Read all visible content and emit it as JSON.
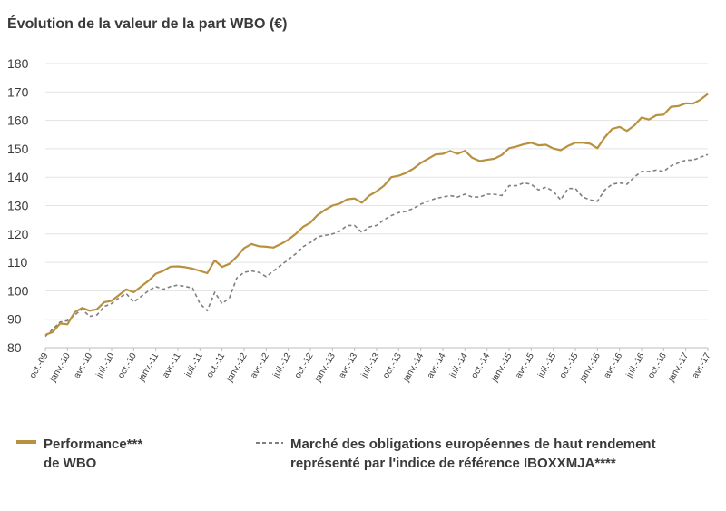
{
  "colors": {
    "wbo": "#B8913F",
    "index": "#7f7f7f",
    "grid": "#e3e3e3",
    "text": "#3a3a3a"
  },
  "chart_data": {
    "type": "line",
    "title": "Évolution de la valeur de la part WBO (€)",
    "ylim": [
      80,
      180
    ],
    "yticks": [
      80,
      90,
      100,
      110,
      120,
      130,
      140,
      150,
      160,
      170,
      180
    ],
    "x_range": [
      "2009-10",
      "2017-06"
    ],
    "xtick_labels": [
      "oct.-09",
      "janv.-10",
      "avr.-10",
      "juil.-10",
      "oct.-10",
      "janv.-11",
      "avr.-11",
      "juil.-11",
      "oct.-11",
      "janv.-12",
      "avr.-12",
      "juil.-12",
      "oct.-12",
      "janv.-13",
      "avr.-13",
      "juil.-13",
      "oct.-13",
      "janv.-14",
      "avr.-14",
      "juil.-14",
      "oct.-14",
      "janv.-15",
      "avr.-15",
      "juil.-15",
      "oct.-15",
      "janv.-16",
      "avr.-16",
      "juil.-16",
      "oct.-16",
      "janv.-17",
      "avr.-17"
    ],
    "grid": "horizontal",
    "legend_position": "bottom",
    "series": [
      {
        "name": "Performance*** de WBO",
        "legend_lines": [
          "Performance***",
          "de WBO"
        ],
        "style": "solid",
        "color": "#B8913F",
        "values": [
          84.5,
          85.5,
          88.5,
          88.2,
          92.5,
          94,
          93,
          93.5,
          96,
          96.5,
          98.5,
          100.5,
          99.5,
          101.5,
          103.5,
          106,
          107,
          108.5,
          108.6,
          108.3,
          107.8,
          107,
          106.2,
          110.7,
          108.4,
          109.5,
          112,
          115,
          116.5,
          115.7,
          115.5,
          115.2,
          116.5,
          118,
          120,
          122.5,
          124,
          126.7,
          128.5,
          130,
          130.7,
          132.2,
          132.5,
          131,
          133.5,
          135,
          137,
          140,
          140.5,
          141.5,
          143,
          145,
          146.5,
          148,
          148.2,
          149.2,
          148.2,
          149.3,
          146.8,
          145.7,
          146.1,
          146.5,
          147.8,
          150.2,
          150.8,
          151.6,
          152.1,
          151.2,
          151.4,
          150.1,
          149.5,
          151,
          152.1,
          152.1,
          151.8,
          150.2,
          154,
          157,
          157.7,
          156.3,
          158.2,
          161,
          160.3,
          161.8,
          162,
          164.8,
          165,
          166,
          165.9,
          167.3,
          169.3
        ]
      },
      {
        "name": "Marché des obligations européennes de haut rendement représenté par l'indice de référence IBOXXMJA****",
        "legend_lines": [
          "Marché des obligations européennes de haut rendement",
          "représenté par l'indice de référence IBOXXMJA****"
        ],
        "style": "dashed",
        "color": "#7f7f7f",
        "values": [
          84,
          86.5,
          89,
          89.5,
          91.5,
          93.5,
          91,
          91.5,
          94.5,
          95.5,
          97.5,
          99,
          96,
          98,
          100,
          101.5,
          100.5,
          101.5,
          102,
          101.5,
          101,
          95.5,
          93,
          99.5,
          95.5,
          97.5,
          104.5,
          106.5,
          107,
          106.5,
          105,
          107,
          109,
          111,
          113,
          115.5,
          117,
          119,
          119.5,
          120,
          121,
          123,
          123,
          120.5,
          122.5,
          123,
          125,
          126.5,
          127.5,
          128,
          129,
          130.5,
          131.5,
          132.5,
          133,
          133.5,
          133,
          134,
          133,
          133,
          134,
          134,
          133.5,
          137,
          137,
          138,
          137.5,
          135.5,
          136.5,
          135,
          132,
          136,
          136,
          133,
          132,
          131.5,
          135.5,
          137.5,
          138,
          137.5,
          140,
          142,
          142,
          142.5,
          142,
          144,
          145,
          146,
          146,
          147,
          148
        ]
      }
    ]
  }
}
